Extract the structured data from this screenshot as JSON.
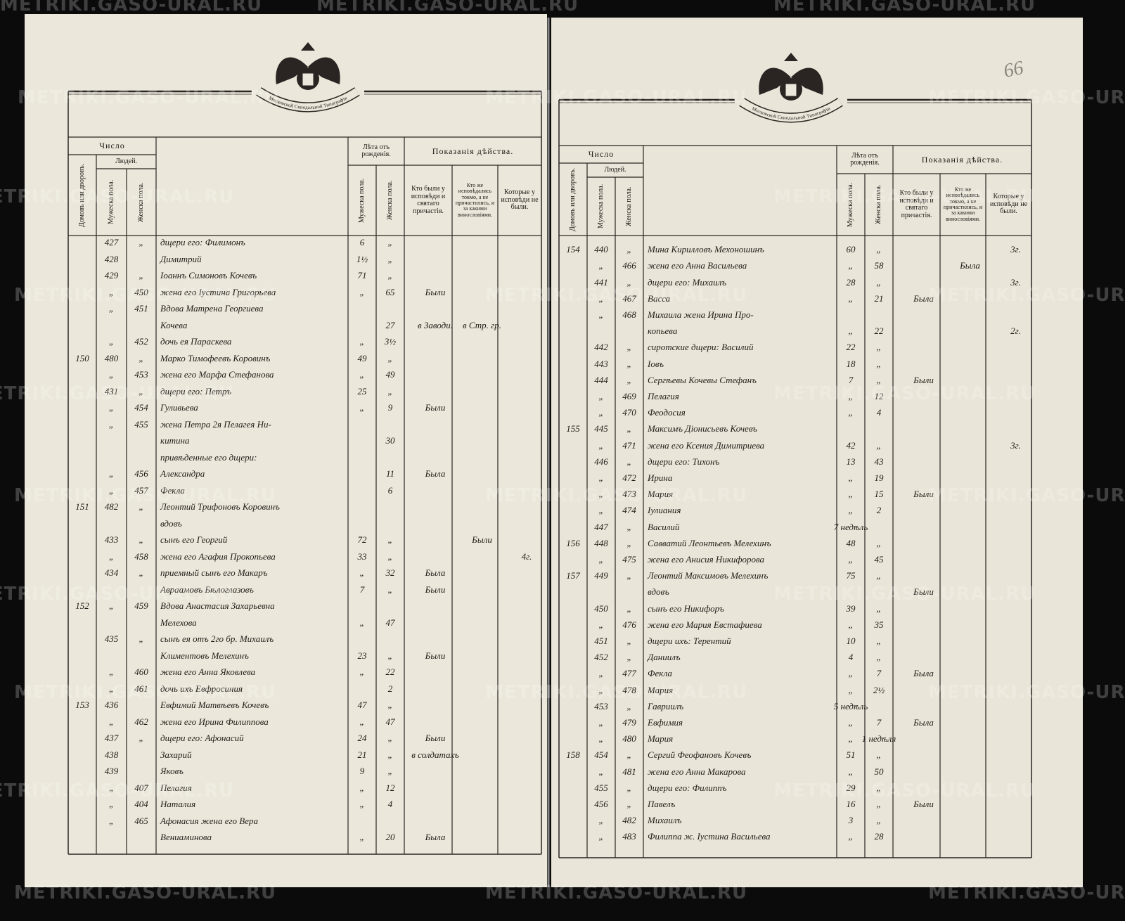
{
  "header": {
    "number": "Число",
    "households": "Домовъ или дворовъ.",
    "people": "Людей.",
    "male": "Мужеска пола.",
    "female": "Женска пола.",
    "age": "Лѣта отъ рожденія.",
    "age_male": "Мужеска пола.",
    "age_female": "Женска пола.",
    "actions": "Показанія дѣйства.",
    "confessed": "Кто были у исповѣди и святаго причастія.",
    "confessed_only": "Кто же исповѣдались токмо, а не причастились, и за какими винословіями.",
    "absent": "Которые у исповѣди не были."
  },
  "ribbon": "Московской Синодальной Типографіи",
  "watermark": "METRIKI.GASO-URAL.RU",
  "page_number": "66",
  "pages": [
    {
      "rows": [
        {
          "male": "427",
          "female": "„",
          "name": "дщери его: Филимонъ",
          "age_m": "6",
          "age_f": "„"
        },
        {
          "male": "428",
          "name": "Димитрий",
          "age_m": "1½",
          "age_f": "„"
        },
        {
          "male": "429",
          "female": "„",
          "name": "Іоаннъ Симоновъ Кочевъ",
          "age_m": "71",
          "age_f": "„"
        },
        {
          "male": "„",
          "female": "450",
          "name": "жена его Іустина Григорьева",
          "age_m": "„",
          "age_f": "65",
          "confessed": "Были"
        },
        {
          "male": "„",
          "female": "451",
          "name": "Вдова Матрена Георгиева"
        },
        {
          "name": "Кочева",
          "age_f": "27",
          "confessed": "в Заводи.",
          "confessed_only": "в Стр. гр."
        },
        {
          "male": "„",
          "female": "452",
          "name": "дочь ея Параскева",
          "age_m": "„",
          "age_f": "3½"
        },
        {
          "house": "150",
          "male": "480",
          "female": "„",
          "name": "Марко Тимофеевъ Коровинъ",
          "age_m": "49",
          "age_f": "„"
        },
        {
          "male": "„",
          "female": "453",
          "name": "жена его Марфа Стефанова",
          "age_m": "„",
          "age_f": "49"
        },
        {
          "male": "431",
          "female": "„",
          "name": "дщери его: Петръ",
          "age_m": "25",
          "age_f": "„"
        },
        {
          "male": "„",
          "female": "454",
          "name": "Гуливьева",
          "age_m": "„",
          "age_f": "9",
          "confessed": "Были"
        },
        {
          "male": "„",
          "female": "455",
          "name": "жена Петра 2я Пелагея Ни-"
        },
        {
          "name": "китина",
          "age_f": "30"
        },
        {
          "name": "привѣденные его дщери:"
        },
        {
          "male": "„",
          "female": "456",
          "name": "Александра",
          "age_f": "11",
          "confessed": "Была"
        },
        {
          "male": "„",
          "female": "457",
          "name": "Фекла",
          "age_f": "6"
        },
        {
          "house": "151",
          "male": "482",
          "female": "„",
          "name": "Леонтий Трифоновъ Коровинъ"
        },
        {
          "name": "вдовъ"
        },
        {
          "male": "433",
          "female": "„",
          "name": "сынъ его Георгий",
          "age_m": "72",
          "age_f": "„",
          "confessed_only": "Были"
        },
        {
          "male": "„",
          "female": "458",
          "name": "жена его Агафия Прокопьева",
          "age_m": "33",
          "age_f": "„",
          "absent": "4г."
        },
        {
          "male": "434",
          "female": "„",
          "name": "приемный сынъ его Макаръ",
          "age_m": "„",
          "age_f": "32",
          "confessed": "Была"
        },
        {
          "name": "Авраамовъ Бѣлоглазовъ",
          "age_m": "7",
          "age_f": "„",
          "confessed": "Были"
        },
        {
          "house": "152",
          "male": "„",
          "female": "459",
          "name": "Вдова Анастасия Захарьевна"
        },
        {
          "name": "Мелехова",
          "age_m": "„",
          "age_f": "47"
        },
        {
          "male": "435",
          "female": "„",
          "name": "сынъ ея отъ 2го бр. Михаилъ"
        },
        {
          "name": "Климентовъ Мелехинъ",
          "age_m": "23",
          "age_f": "„",
          "confessed": "Были"
        },
        {
          "male": "„",
          "female": "460",
          "name": "жена его Анна Яковлева",
          "age_m": "„",
          "age_f": "22"
        },
        {
          "male": "„",
          "female": "461",
          "name": "дочь ихъ Евфросиния",
          "age_f": "2"
        },
        {
          "house": "153",
          "male": "436",
          "name": "Евфимий Матвѣевъ Кочевъ",
          "age_m": "47",
          "age_f": "„"
        },
        {
          "male": "„",
          "female": "462",
          "name": "жена его Ирина Филиппова",
          "age_m": "„",
          "age_f": "47"
        },
        {
          "male": "437",
          "female": "„",
          "name": "дщери его: Афонасий",
          "age_m": "24",
          "age_f": "„",
          "confessed": "Были"
        },
        {
          "male": "438",
          "name": "Захарий",
          "age_m": "21",
          "age_f": "„",
          "confessed": "в солдатахъ"
        },
        {
          "male": "439",
          "name": "Яковъ",
          "age_m": "9",
          "age_f": "„"
        },
        {
          "male": "„",
          "female": "407",
          "name": "Пелагия",
          "age_m": "„",
          "age_f": "12"
        },
        {
          "male": "„",
          "female": "404",
          "name": "Наталия",
          "age_m": "„",
          "age_f": "4"
        },
        {
          "male": "„",
          "female": "465",
          "name": "Афонасия жена его Вера"
        },
        {
          "name": "Вениаминова",
          "age_m": "„",
          "age_f": "20",
          "confessed": "Была"
        }
      ]
    },
    {
      "rows": [
        {
          "house": "154",
          "male": "440",
          "female": "„",
          "name": "Мина Кирилловъ Мехоношинъ",
          "age_m": "60",
          "age_f": "„",
          "absent": "3г."
        },
        {
          "male": "„",
          "female": "466",
          "name": "жена его Анна Васильева",
          "age_m": "„",
          "age_f": "58",
          "confessed_only": "Была"
        },
        {
          "male": "441",
          "female": "„",
          "name": "дщери его: Михаилъ",
          "age_m": "28",
          "age_f": "„",
          "absent": "3г."
        },
        {
          "male": "„",
          "female": "467",
          "name": "Васса",
          "age_m": "„",
          "age_f": "21",
          "confessed": "Была"
        },
        {
          "male": "„",
          "female": "468",
          "name": "Михаила жена Ирина Про-"
        },
        {
          "name": "копьева",
          "age_m": "„",
          "age_f": "22",
          "absent": "2г."
        },
        {
          "male": "442",
          "female": "„",
          "name": "сиротские дщери: Василий",
          "age_m": "22",
          "age_f": "„"
        },
        {
          "male": "443",
          "female": "„",
          "name": "Іовъ",
          "age_m": "18",
          "age_f": "„"
        },
        {
          "male": "444",
          "female": "„",
          "name": "Сергѣевы Кочевы Стефанъ",
          "age_m": "7",
          "age_f": "„",
          "confessed": "Были"
        },
        {
          "male": "„",
          "female": "469",
          "name": "Пелагия",
          "age_m": "„",
          "age_f": "12"
        },
        {
          "male": "„",
          "female": "470",
          "name": "Феодосия",
          "age_m": "„",
          "age_f": "4"
        },
        {
          "house": "155",
          "male": "445",
          "female": "„",
          "name": "Максимъ Діонисьевъ Кочевъ"
        },
        {
          "male": "„",
          "female": "471",
          "name": "жена его Ксения Димитриева",
          "age_m": "42",
          "age_f": "„",
          "absent": "3г."
        },
        {
          "male": "446",
          "female": "„",
          "name": "дщери его: Тихонъ",
          "age_m": "13",
          "age_f": "43"
        },
        {
          "male": "„",
          "female": "472",
          "name": "Ирина",
          "age_m": "„",
          "age_f": "19"
        },
        {
          "male": "„",
          "female": "473",
          "name": "Мария",
          "age_m": "„",
          "age_f": "15",
          "confessed": "Были"
        },
        {
          "male": "„",
          "female": "474",
          "name": "Іулиания",
          "age_m": "„",
          "age_f": "2"
        },
        {
          "male": "447",
          "female": "„",
          "name": "Василий",
          "age_m": "7 недѣль"
        },
        {
          "house": "156",
          "male": "448",
          "female": "„",
          "name": "Савватий Леонтьевъ Мелехинъ",
          "age_m": "48",
          "age_f": "„"
        },
        {
          "male": "„",
          "female": "475",
          "name": "жена его Анисия Никифорова",
          "age_m": "„",
          "age_f": "45"
        },
        {
          "house": "157",
          "male": "449",
          "female": "„",
          "name": "Леонтий Максимовъ Мелехинъ",
          "age_m": "75",
          "age_f": "„"
        },
        {
          "name": "вдовъ",
          "confessed": "Были"
        },
        {
          "male": "450",
          "female": "„",
          "name": "сынъ его Никифоръ",
          "age_m": "39",
          "age_f": "„"
        },
        {
          "male": "„",
          "female": "476",
          "name": "жена его Мария Евстафиева",
          "age_m": "„",
          "age_f": "35"
        },
        {
          "male": "451",
          "female": "„",
          "name": "дщери ихъ: Терентий",
          "age_m": "10",
          "age_f": "„"
        },
        {
          "male": "452",
          "female": "„",
          "name": "Даниилъ",
          "age_m": "4",
          "age_f": "„"
        },
        {
          "male": "„",
          "female": "477",
          "name": "Фекла",
          "age_m": "„",
          "age_f": "7",
          "confessed": "Была"
        },
        {
          "male": "„",
          "female": "478",
          "name": "Мария",
          "age_m": "„",
          "age_f": "2½"
        },
        {
          "male": "453",
          "female": "„",
          "name": "Гавриилъ",
          "age_m": "5 недѣль"
        },
        {
          "male": "„",
          "female": "479",
          "name": "Евфимия",
          "age_m": "„",
          "age_f": "7",
          "confessed": "Была"
        },
        {
          "male": "„",
          "female": "480",
          "name": "Мария",
          "age_m": "„",
          "age_f": "1 недѣля"
        },
        {
          "house": "158",
          "male": "454",
          "female": "„",
          "name": "Сергий Феофановъ Кочевъ",
          "age_m": "51",
          "age_f": "„"
        },
        {
          "male": "„",
          "female": "481",
          "name": "жена его Анна Макарова",
          "age_m": "„",
          "age_f": "50"
        },
        {
          "male": "455",
          "female": "„",
          "name": "дщери его: Филиппъ",
          "age_m": "29",
          "age_f": "„"
        },
        {
          "male": "456",
          "female": "„",
          "name": "Павелъ",
          "age_m": "16",
          "age_f": "„",
          "confessed": "Были"
        },
        {
          "male": "„",
          "female": "482",
          "name": "Михаилъ",
          "age_m": "3",
          "age_f": "„"
        },
        {
          "male": "„",
          "female": "483",
          "name": "Филиппа ж. Іустина Васильева",
          "age_m": "„",
          "age_f": "28"
        }
      ]
    }
  ]
}
